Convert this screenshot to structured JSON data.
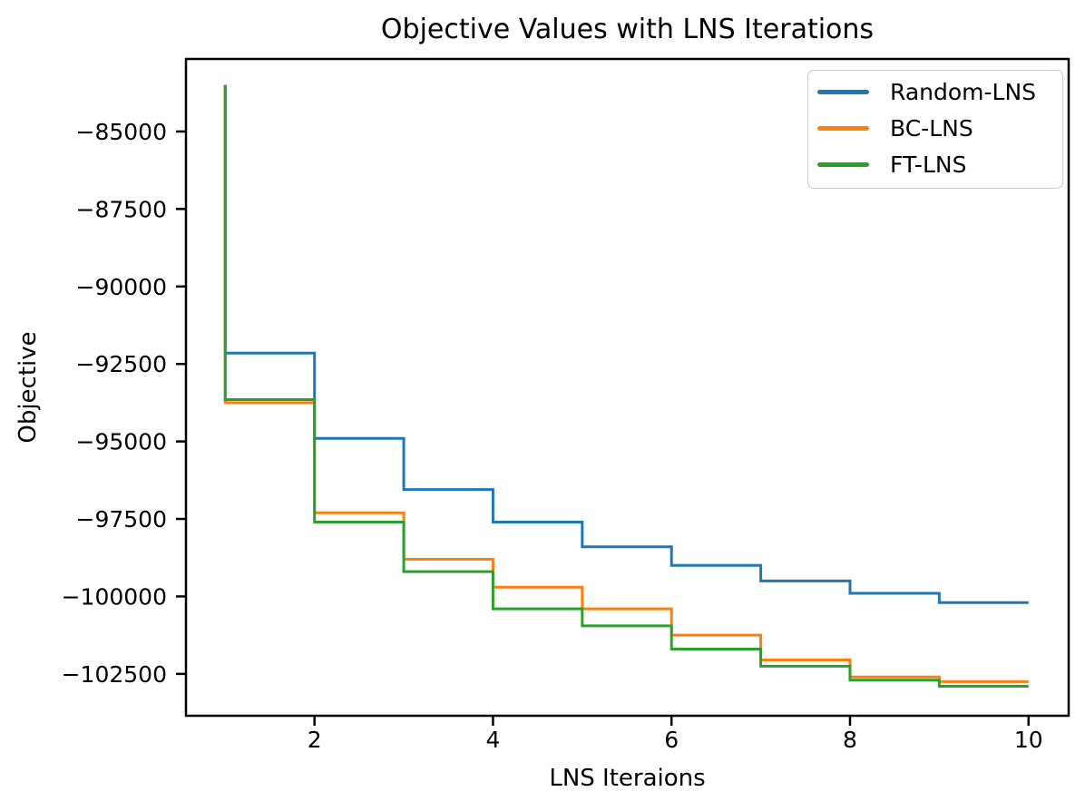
{
  "figure": {
    "background": "#ffffff",
    "axis_color": "#000000"
  },
  "chart_data": {
    "type": "line",
    "subtype": "step-pre",
    "title": "Objective Values with LNS Iterations",
    "xlabel": "LNS Iteraions",
    "ylabel": "Objective",
    "x": [
      1,
      2,
      3,
      4,
      5,
      6,
      7,
      8,
      9,
      10
    ],
    "series": [
      {
        "name": "Random-LNS",
        "color": "#1f77b4",
        "values": [
          -83500,
          -92150,
          -94900,
          -96550,
          -97600,
          -98400,
          -99000,
          -99500,
          -99900,
          -100200
        ]
      },
      {
        "name": "BC-LNS",
        "color": "#ff7f0e",
        "values": [
          -83500,
          -93750,
          -97300,
          -98800,
          -99700,
          -100400,
          -101250,
          -102050,
          -102600,
          -102750
        ]
      },
      {
        "name": "FT-LNS",
        "color": "#2ca02c",
        "values": [
          -83500,
          -93650,
          -97600,
          -99200,
          -100400,
          -100950,
          -101700,
          -102250,
          -102700,
          -102900
        ]
      }
    ],
    "xticks": {
      "values": [
        2,
        4,
        6,
        8,
        10
      ],
      "labels": [
        "2",
        "4",
        "6",
        "8",
        "10"
      ]
    },
    "yticks": {
      "values": [
        -85000,
        -87500,
        -90000,
        -92500,
        -95000,
        -97500,
        -100000,
        -102500
      ],
      "labels": [
        "−85000",
        "−87500",
        "−90000",
        "−92500",
        "−95000",
        "−97500",
        "−100000",
        "−102500"
      ]
    },
    "xlim": [
      0.56,
      10.45
    ],
    "ylim": [
      -103850,
      -82660
    ],
    "grid": false,
    "legend_position": "upper right",
    "line_width": 3
  }
}
